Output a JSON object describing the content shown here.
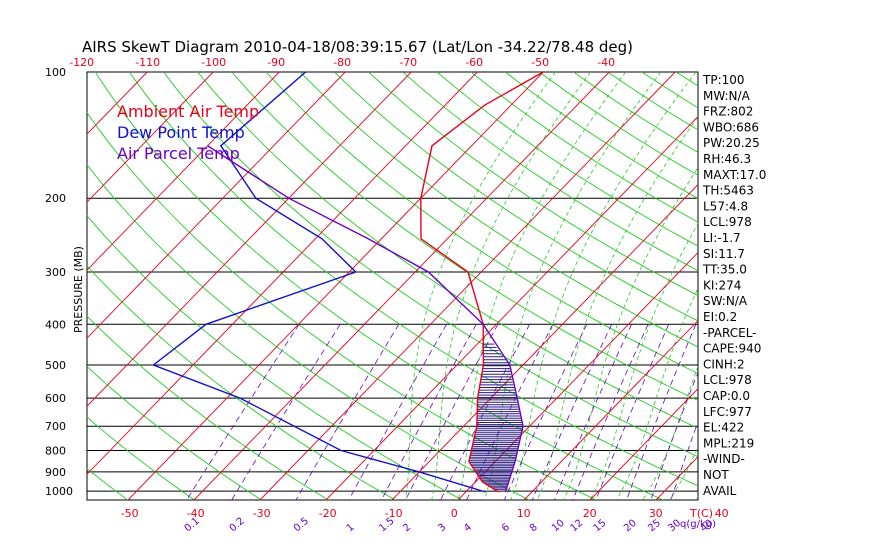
{
  "chart_data": {
    "type": "line",
    "title": "AIRS SkewT Diagram 2010-04-18/08:39:15.67 (Lat/Lon -34.22/78.48 deg)",
    "ylabel": "PRESSURE (MB)",
    "xlabel": "T(C)",
    "mixing_label": "q(g/kg)",
    "pressure_ticks": [
      100,
      200,
      300,
      400,
      500,
      600,
      700,
      800,
      900,
      1000
    ],
    "top_temp_labels": [
      "-120",
      "-110",
      "-100",
      "-90",
      "-80",
      "-70",
      "-60",
      "-50",
      "-40"
    ],
    "bottom_temp_labels": [
      "-50",
      "-40",
      "-30",
      "-20",
      "-10",
      "0",
      "10",
      "20",
      "30",
      "40"
    ],
    "mixing_ratio_labels": [
      "0.1",
      "0.2",
      "0.5",
      "1",
      "1.5",
      "2",
      "3",
      "4",
      "6",
      "8",
      "10",
      "12",
      "15",
      "20",
      "25",
      "30",
      "40"
    ],
    "legend": [
      {
        "label": "Ambient Air Temp",
        "color": "#e8001c"
      },
      {
        "label": "Dew Point Temp",
        "color": "#1010d0"
      },
      {
        "label": "Air Parcel Temp",
        "color": "#6a00c8"
      }
    ],
    "series": [
      {
        "name": "Ambient Air Temp",
        "color": "#e8001c",
        "x": [
          5,
          1,
          -4,
          -8,
          -12,
          -16,
          -22,
          -32,
          -44,
          -50,
          -56,
          -54,
          -50
        ],
        "y": [
          1005,
          950,
          850,
          700,
          600,
          500,
          400,
          300,
          250,
          200,
          150,
          120,
          100
        ]
      },
      {
        "name": "Dew Point Temp",
        "color": "#1010d0",
        "x": [
          3,
          -10,
          -25,
          -48,
          -66,
          -64,
          -49,
          -59,
          -75,
          -88,
          -86
        ],
        "y": [
          1005,
          900,
          800,
          600,
          500,
          400,
          300,
          250,
          200,
          150,
          100
        ]
      },
      {
        "name": "Air Parcel Temp",
        "color": "#6a00c8",
        "x": [
          6,
          5,
          3,
          -1,
          -6,
          -12,
          -22,
          -38,
          -52,
          -70,
          -90
        ],
        "y": [
          1005,
          950,
          850,
          700,
          600,
          500,
          400,
          300,
          250,
          200,
          150
        ]
      }
    ]
  },
  "indices": [
    "TP:100",
    "MW:N/A",
    "FRZ:802",
    "WBO:686",
    "PW:20.25",
    "RH:46.3",
    "MAXT:17.0",
    "TH:5463",
    "L57:4.8",
    "LCL:978",
    "LI:-1.7",
    "SI:11.7",
    "TT:35.0",
    "KI:274",
    "SW:N/A",
    "EI:0.2",
    "-PARCEL-",
    "CAPE:940",
    "CINH:2",
    "LCL:978",
    "CAP:0.0",
    "LFC:977",
    "EL:422",
    "MPL:219",
    "-WIND-",
    "NOT",
    "AVAIL"
  ],
  "colors": {
    "isotherm": "#e8001c",
    "dry_adiabat": "#22cc22",
    "moist_adiabat": "#22cc22",
    "mixing_ratio": "#6a00c8",
    "isobar": "#000000",
    "hatch": "#2a1a80"
  }
}
